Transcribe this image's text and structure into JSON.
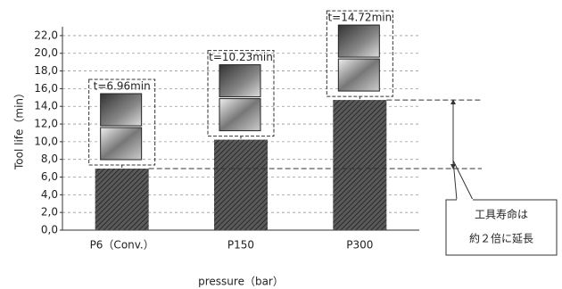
{
  "chart_data": {
    "type": "bar",
    "categories": [
      "P6（Conv.）",
      "P150",
      "P300"
    ],
    "values": [
      6.96,
      10.23,
      14.72
    ],
    "value_labels": [
      "t=6.96min",
      "t=10.23min",
      "t=14.72min"
    ],
    "color": "#4a4a4a",
    "y_label": "Tool life（min）",
    "x_label": "pressure（bar）",
    "ylim": [
      0,
      23
    ],
    "yticks": [
      {
        "value": 0,
        "label": "0,0"
      },
      {
        "value": 2,
        "label": "2,0"
      },
      {
        "value": 4,
        "label": "4,0"
      },
      {
        "value": 6,
        "label": "6,0"
      },
      {
        "value": 8,
        "label": "8,0"
      },
      {
        "value": 10,
        "label": "10,0"
      },
      {
        "value": 12,
        "label": "12,0"
      },
      {
        "value": 14,
        "label": "14,0"
      },
      {
        "value": 16,
        "label": "16,0"
      },
      {
        "value": 18,
        "label": "18,0"
      },
      {
        "value": 20,
        "label": "20,0"
      },
      {
        "value": 22,
        "label": "22,0"
      }
    ],
    "grid": true,
    "annotation": [
      "工具寿命は",
      "約２倍に延長"
    ]
  }
}
